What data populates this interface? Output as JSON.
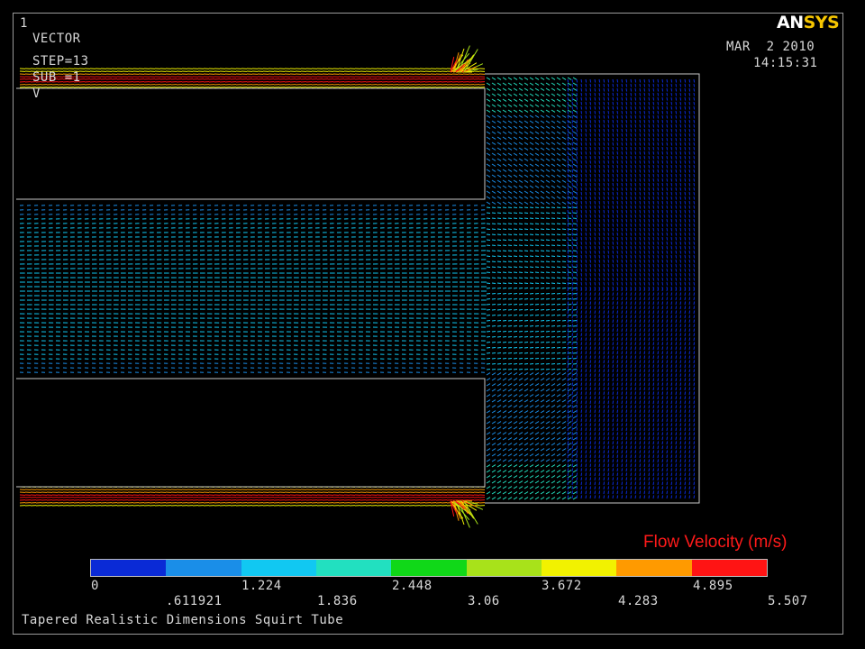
{
  "header": {
    "window_number": "1",
    "plot_type": "VECTOR",
    "step": "STEP=13",
    "sub": "SUB =1",
    "variable": "V",
    "date": "MAR  2 2010",
    "time": "14:15:31",
    "logo_an": "AN",
    "logo_sys": "SYS"
  },
  "label": "Flow Velocity (m/s)",
  "caption": "Tapered Realistic Dimensions Squirt Tube",
  "legend": {
    "colors": [
      "#0a2ad6",
      "#1a8ee8",
      "#11c8f2",
      "#22e0c0",
      "#10d818",
      "#a8e21a",
      "#f2f200",
      "#ff9a00",
      "#ff1414"
    ],
    "top_ticks": [
      "0",
      "1.224",
      "2.448",
      "3.672",
      "4.895"
    ],
    "bottom_ticks": [
      ".611921",
      "1.836",
      "3.06",
      "4.283",
      "5.507"
    ]
  },
  "colors": {
    "background": "#000000",
    "geometry_line": "#c8c8c8",
    "label": "#ff1a1a",
    "logo_accent": "#f6c500"
  }
}
